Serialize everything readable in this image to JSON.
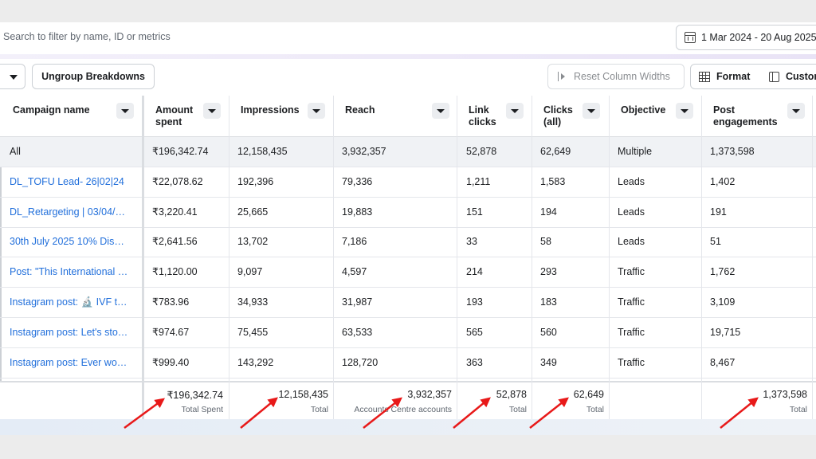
{
  "search": {
    "placeholder": "Search to filter by name, ID or metrics"
  },
  "date_range": {
    "label": "1 Mar 2024 - 20 Aug 2025"
  },
  "toolbar": {
    "ungroup_label": "Ungroup Breakdowns",
    "reset_label": "Reset Column Widths",
    "format_label": "Format",
    "customise_label": "Customise"
  },
  "columns": [
    "Campaign name",
    "Amount spent",
    "Impressions",
    "Reach",
    "Link clicks",
    "Clicks (all)",
    "Objective",
    "Post engagements"
  ],
  "columns_wrapped": {
    "amount": [
      "Amount",
      "spent"
    ],
    "link": [
      "Link",
      "clicks"
    ],
    "clicks": [
      "Clicks",
      "(all)"
    ],
    "post": [
      "Post",
      "engagements"
    ]
  },
  "rows": [
    {
      "name": "All",
      "amount": "₹196,342.74",
      "impressions": "12,158,435",
      "reach": "3,932,357",
      "link_clicks": "52,878",
      "clicks_all": "62,649",
      "objective": "Multiple",
      "post_engagements": "1,373,598"
    },
    {
      "name": "DL_TOFU Lead- 26|02|24",
      "amount": "₹22,078.62",
      "impressions": "192,396",
      "reach": "79,336",
      "link_clicks": "1,211",
      "clicks_all": "1,583",
      "objective": "Leads",
      "post_engagements": "1,402"
    },
    {
      "name": "DL_Retargeting | 03/04/…",
      "amount": "₹3,220.41",
      "impressions": "25,665",
      "reach": "19,883",
      "link_clicks": "151",
      "clicks_all": "194",
      "objective": "Leads",
      "post_engagements": "191"
    },
    {
      "name": "30th July 2025 10% Dis…",
      "amount": "₹2,641.56",
      "impressions": "13,702",
      "reach": "7,186",
      "link_clicks": "33",
      "clicks_all": "58",
      "objective": "Leads",
      "post_engagements": "51"
    },
    {
      "name": "Post: \"This International …",
      "amount": "₹1,120.00",
      "impressions": "9,097",
      "reach": "4,597",
      "link_clicks": "214",
      "clicks_all": "293",
      "objective": "Traffic",
      "post_engagements": "1,762"
    },
    {
      "name": "Instagram post: 🔬 IVF t…",
      "amount": "₹783.96",
      "impressions": "34,933",
      "reach": "31,987",
      "link_clicks": "193",
      "clicks_all": "183",
      "objective": "Traffic",
      "post_engagements": "3,109"
    },
    {
      "name": "Instagram post: Let's sto…",
      "amount": "₹974.67",
      "impressions": "75,455",
      "reach": "63,533",
      "link_clicks": "565",
      "clicks_all": "560",
      "objective": "Traffic",
      "post_engagements": "19,715"
    },
    {
      "name": "Instagram post: Ever wo…",
      "amount": "₹999.40",
      "impressions": "143,292",
      "reach": "128,720",
      "link_clicks": "363",
      "clicks_all": "349",
      "objective": "Traffic",
      "post_engagements": "8,467"
    }
  ],
  "totals": {
    "amount": {
      "value": "₹196,342.74",
      "label": "Total Spent"
    },
    "impressions": {
      "value": "12,158,435",
      "label": "Total"
    },
    "reach": {
      "value": "3,932,357",
      "label": "Accounts Centre accounts"
    },
    "link_clicks": {
      "value": "52,878",
      "label": "Total"
    },
    "clicks_all": {
      "value": "62,649",
      "label": "Total"
    },
    "post_engagements": {
      "value": "1,373,598",
      "label": "Total"
    }
  },
  "colors": {
    "link": "#216fdb",
    "arrow": "#e81919",
    "header_bg": "#ffffff",
    "all_row_bg": "#f0f2f5"
  },
  "icons": [
    "calendar-icon",
    "dropdown-caret-icon",
    "reset-column-icon",
    "format-grid-icon",
    "customise-panel-icon",
    "sort-caret-icon",
    "red-arrow-icon"
  ]
}
